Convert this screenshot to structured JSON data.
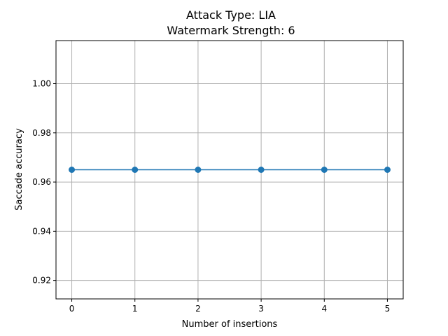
{
  "chart_data": {
    "type": "line",
    "title": [
      "Attack Type: LIA",
      "Watermark Strength: 6"
    ],
    "xlabel": "Number of insertions",
    "ylabel": "Saccade accuracy",
    "x": [
      0,
      1,
      2,
      3,
      4,
      5
    ],
    "series": [
      {
        "values": [
          0.965,
          0.965,
          0.965,
          0.965,
          0.965,
          0.965
        ],
        "color": "#1f77b4",
        "marker": "circle"
      }
    ],
    "xlim": [
      -0.25,
      5.25
    ],
    "ylim": [
      0.9125,
      1.0175
    ],
    "xticks": [
      "0",
      "1",
      "2",
      "3",
      "4",
      "5"
    ],
    "yticks": [
      "0.92",
      "0.94",
      "0.96",
      "0.98",
      "1.00"
    ],
    "ytick_values": [
      0.92,
      0.94,
      0.96,
      0.98,
      1.0
    ],
    "grid": true
  }
}
